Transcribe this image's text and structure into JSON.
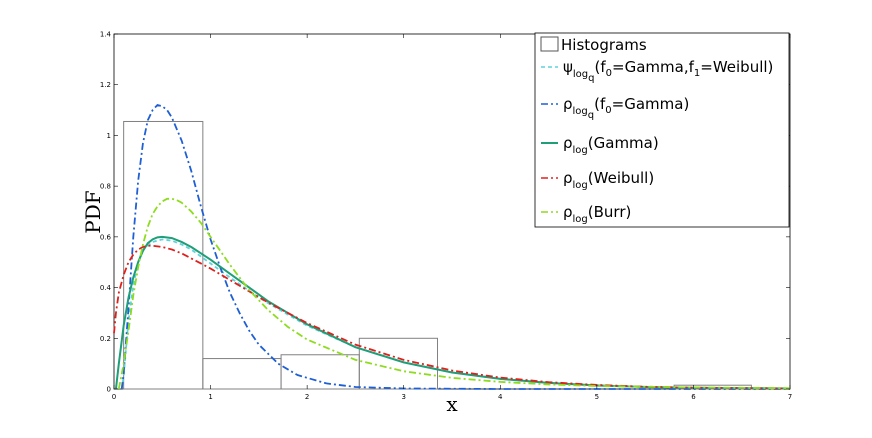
{
  "chart_data": {
    "type": "line",
    "xlabel": "x",
    "ylabel": "PDF",
    "xlim": [
      0,
      7
    ],
    "ylim": [
      0,
      1.4
    ],
    "x_ticks": [
      "0",
      "1",
      "2",
      "3",
      "4",
      "5",
      "6",
      "7"
    ],
    "y_ticks": [
      "0",
      "0.2",
      "0.4",
      "0.6",
      "0.8",
      "1",
      "1.2",
      "1.4"
    ],
    "legend_position": "top-right",
    "histogram": {
      "name": "Histograms",
      "color": "#808080",
      "bins": [
        {
          "x0": 0.1,
          "x1": 0.92,
          "height": 1.055
        },
        {
          "x0": 0.92,
          "x1": 1.73,
          "height": 0.12
        },
        {
          "x0": 1.73,
          "x1": 2.54,
          "height": 0.135
        },
        {
          "x0": 2.54,
          "x1": 3.35,
          "height": 0.2
        },
        {
          "x0": 5.8,
          "x1": 6.6,
          "height": 0.015
        }
      ]
    },
    "series": [
      {
        "name": "ψlogq(f0=Gamma,f1=Weibull)",
        "legend_main": "ψ",
        "legend_sub": "log",
        "legend_subsub": "q",
        "legend_tail": "(f",
        "legend_tail_sub": "0",
        "legend_tail2": "=Gamma,f",
        "legend_tail2_sub": "1",
        "legend_tail3": "=Weibull)",
        "color": "#5fd3dc",
        "dash": "4,3",
        "points": [
          [
            0.08,
            0
          ],
          [
            0.1,
            0.05
          ],
          [
            0.12,
            0.14
          ],
          [
            0.15,
            0.27
          ],
          [
            0.2,
            0.41
          ],
          [
            0.25,
            0.5
          ],
          [
            0.3,
            0.55
          ],
          [
            0.4,
            0.58
          ],
          [
            0.5,
            0.59
          ],
          [
            0.6,
            0.585
          ],
          [
            0.7,
            0.57
          ],
          [
            0.8,
            0.55
          ],
          [
            1.0,
            0.495
          ],
          [
            1.2,
            0.44
          ],
          [
            1.5,
            0.36
          ],
          [
            2.0,
            0.25
          ],
          [
            2.5,
            0.165
          ],
          [
            3.0,
            0.105
          ],
          [
            3.5,
            0.066
          ],
          [
            4.0,
            0.04
          ],
          [
            4.5,
            0.024
          ],
          [
            5.0,
            0.014
          ],
          [
            5.5,
            0.008
          ],
          [
            6.0,
            0.005
          ],
          [
            7.0,
            0.002
          ]
        ]
      },
      {
        "name": "ρlogq(f0=Gamma)",
        "legend_main": "ρ",
        "legend_sub": "log",
        "legend_subsub": "q",
        "legend_tail": "(f",
        "legend_tail_sub": "0",
        "legend_tail2": "=Gamma)",
        "legend_tail2_sub": "",
        "legend_tail3": "",
        "color": "#1f5fd4",
        "dash": "7,3,2,3",
        "points": [
          [
            0.08,
            0
          ],
          [
            0.1,
            0.06
          ],
          [
            0.15,
            0.32
          ],
          [
            0.2,
            0.6
          ],
          [
            0.25,
            0.82
          ],
          [
            0.3,
            0.97
          ],
          [
            0.35,
            1.06
          ],
          [
            0.4,
            1.1
          ],
          [
            0.45,
            1.12
          ],
          [
            0.5,
            1.115
          ],
          [
            0.55,
            1.1
          ],
          [
            0.6,
            1.07
          ],
          [
            0.7,
            0.98
          ],
          [
            0.8,
            0.86
          ],
          [
            0.9,
            0.72
          ],
          [
            1.0,
            0.59
          ],
          [
            1.1,
            0.48
          ],
          [
            1.2,
            0.38
          ],
          [
            1.3,
            0.3
          ],
          [
            1.4,
            0.23
          ],
          [
            1.5,
            0.175
          ],
          [
            1.7,
            0.1
          ],
          [
            1.9,
            0.055
          ],
          [
            2.2,
            0.022
          ],
          [
            2.5,
            0.008
          ],
          [
            3.0,
            0.002
          ],
          [
            4.0,
            0.0
          ],
          [
            7.0,
            0.0
          ]
        ]
      },
      {
        "name": "ρlog(Gamma)",
        "legend_main": "ρ",
        "legend_sub": "log",
        "legend_subsub": "",
        "legend_tail": "(Gamma)",
        "legend_tail_sub": "",
        "legend_tail2": "",
        "legend_tail2_sub": "",
        "legend_tail3": "",
        "color": "#1f9e77",
        "dash": "",
        "points": [
          [
            0.02,
            0
          ],
          [
            0.05,
            0.1
          ],
          [
            0.1,
            0.25
          ],
          [
            0.15,
            0.36
          ],
          [
            0.2,
            0.44
          ],
          [
            0.25,
            0.5
          ],
          [
            0.3,
            0.545
          ],
          [
            0.35,
            0.575
          ],
          [
            0.4,
            0.59
          ],
          [
            0.45,
            0.598
          ],
          [
            0.5,
            0.6
          ],
          [
            0.6,
            0.595
          ],
          [
            0.7,
            0.58
          ],
          [
            0.8,
            0.56
          ],
          [
            0.9,
            0.535
          ],
          [
            1.0,
            0.51
          ],
          [
            1.2,
            0.455
          ],
          [
            1.4,
            0.4
          ],
          [
            1.6,
            0.345
          ],
          [
            1.8,
            0.3
          ],
          [
            2.0,
            0.255
          ],
          [
            2.5,
            0.165
          ],
          [
            3.0,
            0.105
          ],
          [
            3.5,
            0.065
          ],
          [
            4.0,
            0.04
          ],
          [
            4.5,
            0.024
          ],
          [
            5.0,
            0.014
          ],
          [
            5.5,
            0.008
          ],
          [
            6.0,
            0.005
          ],
          [
            7.0,
            0.002
          ]
        ]
      },
      {
        "name": "ρlog(Weibull)",
        "legend_main": "ρ",
        "legend_sub": "log",
        "legend_subsub": "",
        "legend_tail": "(Weibull)",
        "legend_tail_sub": "",
        "legend_tail2": "",
        "legend_tail2_sub": "",
        "legend_tail3": "",
        "color": "#e0201c",
        "dash": "7,3,2,3",
        "points": [
          [
            0.0,
            0.22
          ],
          [
            0.02,
            0.3
          ],
          [
            0.05,
            0.38
          ],
          [
            0.1,
            0.45
          ],
          [
            0.15,
            0.5
          ],
          [
            0.2,
            0.53
          ],
          [
            0.25,
            0.55
          ],
          [
            0.3,
            0.56
          ],
          [
            0.35,
            0.565
          ],
          [
            0.4,
            0.565
          ],
          [
            0.5,
            0.56
          ],
          [
            0.6,
            0.55
          ],
          [
            0.7,
            0.535
          ],
          [
            0.8,
            0.515
          ],
          [
            0.9,
            0.495
          ],
          [
            1.0,
            0.475
          ],
          [
            1.2,
            0.43
          ],
          [
            1.4,
            0.385
          ],
          [
            1.6,
            0.34
          ],
          [
            1.8,
            0.3
          ],
          [
            2.0,
            0.26
          ],
          [
            2.5,
            0.175
          ],
          [
            3.0,
            0.115
          ],
          [
            3.5,
            0.073
          ],
          [
            4.0,
            0.045
          ],
          [
            4.5,
            0.027
          ],
          [
            5.0,
            0.016
          ],
          [
            5.5,
            0.009
          ],
          [
            6.0,
            0.005
          ],
          [
            7.0,
            0.002
          ]
        ]
      },
      {
        "name": "ρlog(Burr)",
        "legend_main": "ρ",
        "legend_sub": "log",
        "legend_subsub": "",
        "legend_tail": "(Burr)",
        "legend_tail_sub": "",
        "legend_tail2": "",
        "legend_tail2_sub": "",
        "legend_tail3": "",
        "color": "#8ddc1e",
        "dash": "7,3,2,3",
        "points": [
          [
            0.05,
            0
          ],
          [
            0.1,
            0.1
          ],
          [
            0.15,
            0.23
          ],
          [
            0.2,
            0.37
          ],
          [
            0.25,
            0.48
          ],
          [
            0.3,
            0.57
          ],
          [
            0.35,
            0.64
          ],
          [
            0.4,
            0.69
          ],
          [
            0.45,
            0.72
          ],
          [
            0.5,
            0.74
          ],
          [
            0.55,
            0.75
          ],
          [
            0.6,
            0.75
          ],
          [
            0.65,
            0.745
          ],
          [
            0.7,
            0.735
          ],
          [
            0.8,
            0.7
          ],
          [
            0.9,
            0.655
          ],
          [
            1.0,
            0.6
          ],
          [
            1.1,
            0.545
          ],
          [
            1.2,
            0.49
          ],
          [
            1.4,
            0.39
          ],
          [
            1.6,
            0.31
          ],
          [
            1.8,
            0.245
          ],
          [
            2.0,
            0.195
          ],
          [
            2.5,
            0.115
          ],
          [
            3.0,
            0.07
          ],
          [
            3.5,
            0.044
          ],
          [
            4.0,
            0.028
          ],
          [
            4.5,
            0.018
          ],
          [
            5.0,
            0.012
          ],
          [
            6.0,
            0.006
          ],
          [
            7.0,
            0.003
          ]
        ]
      }
    ]
  }
}
